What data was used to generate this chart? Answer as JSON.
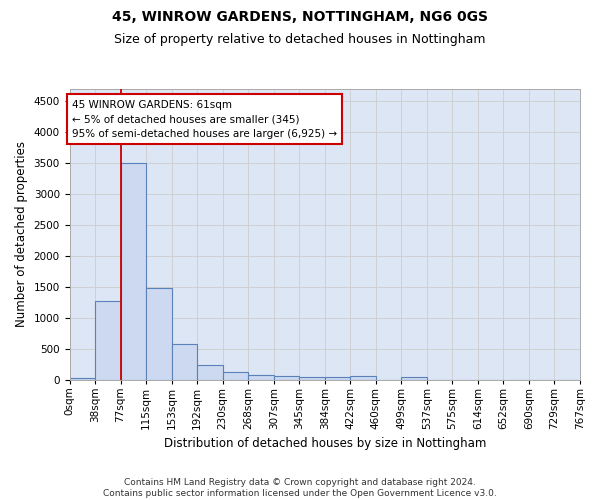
{
  "title": "45, WINROW GARDENS, NOTTINGHAM, NG6 0GS",
  "subtitle": "Size of property relative to detached houses in Nottingham",
  "xlabel": "Distribution of detached houses by size in Nottingham",
  "ylabel": "Number of detached properties",
  "bar_values": [
    30,
    1270,
    3500,
    1480,
    575,
    240,
    115,
    80,
    55,
    50,
    40,
    55,
    0,
    50,
    0,
    0,
    0,
    0,
    0,
    0
  ],
  "bar_labels": [
    "0sqm",
    "38sqm",
    "77sqm",
    "115sqm",
    "153sqm",
    "192sqm",
    "230sqm",
    "268sqm",
    "307sqm",
    "345sqm",
    "384sqm",
    "422sqm",
    "460sqm",
    "499sqm",
    "537sqm",
    "575sqm",
    "614sqm",
    "652sqm",
    "690sqm",
    "729sqm",
    "767sqm"
  ],
  "bar_color": "#ccd9f0",
  "bar_edgecolor": "#5b82b8",
  "bar_linewidth": 0.8,
  "vline_pos": 2,
  "vline_color": "#cc0000",
  "annotation_line1": "45 WINROW GARDENS: 61sqm",
  "annotation_line2": "← 5% of detached houses are smaller (345)",
  "annotation_line3": "95% of semi-detached houses are larger (6,925) →",
  "annotation_box_edgecolor": "#cc0000",
  "annotation_box_facecolor": "white",
  "ylim": [
    0,
    4700
  ],
  "yticks": [
    0,
    500,
    1000,
    1500,
    2000,
    2500,
    3000,
    3500,
    4000,
    4500
  ],
  "grid_color": "#cccccc",
  "bg_color": "#dce6f5",
  "footnote_line1": "Contains HM Land Registry data © Crown copyright and database right 2024.",
  "footnote_line2": "Contains public sector information licensed under the Open Government Licence v3.0.",
  "title_fontsize": 10,
  "subtitle_fontsize": 9,
  "xlabel_fontsize": 8.5,
  "ylabel_fontsize": 8.5,
  "tick_fontsize": 7.5,
  "annot_fontsize": 7.5,
  "footnote_fontsize": 6.5
}
